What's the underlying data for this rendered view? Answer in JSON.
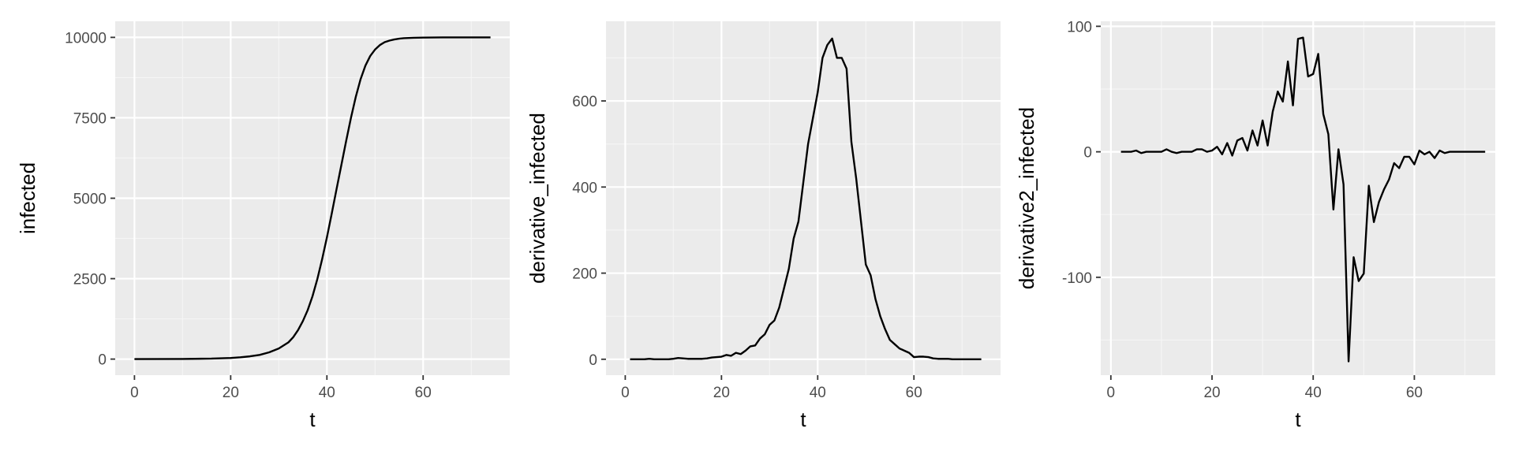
{
  "colors": {
    "panel_background": "#EBEBEB",
    "major_grid": "#FFFFFF",
    "minor_grid": "#F5F5F5",
    "line": "#000000",
    "tick": "#333333",
    "tick_label": "#4D4D4D",
    "axis_title": "#000000"
  },
  "chart_data": [
    {
      "type": "line",
      "xlabel": "t",
      "ylabel": "infected",
      "xlim": [
        -4,
        78
      ],
      "ylim": [
        -500,
        10500
      ],
      "x_ticks": [
        0,
        20,
        40,
        60
      ],
      "x_tick_labels": [
        "0",
        "20",
        "40",
        "60"
      ],
      "y_ticks": [
        0,
        2500,
        5000,
        7500,
        10000
      ],
      "y_tick_labels": [
        "0",
        "2500",
        "5000",
        "7500",
        "10000"
      ],
      "grid": true,
      "legend": "none",
      "series": [
        {
          "x": [
            0,
            10,
            16,
            20,
            22,
            24,
            26,
            28,
            30,
            32,
            33,
            34,
            35,
            36,
            37,
            38,
            39,
            40,
            41,
            42,
            43,
            44,
            45,
            46,
            47,
            48,
            49,
            50,
            51,
            52,
            53,
            54,
            55,
            56,
            58,
            60,
            62,
            64,
            66,
            68,
            70,
            72,
            74
          ],
          "y": [
            0,
            5,
            15,
            35,
            55,
            85,
            130,
            210,
            330,
            520,
            680,
            900,
            1180,
            1520,
            1950,
            2480,
            3100,
            3780,
            4520,
            5280,
            6030,
            6780,
            7500,
            8150,
            8700,
            9120,
            9420,
            9620,
            9760,
            9850,
            9900,
            9935,
            9960,
            9975,
            9988,
            9994,
            9997,
            9999,
            10000,
            10000,
            10000,
            10000,
            10000
          ]
        }
      ]
    },
    {
      "type": "line",
      "xlabel": "t",
      "ylabel": "derivative_infected",
      "xlim": [
        -4,
        78
      ],
      "ylim": [
        -37,
        785
      ],
      "x_ticks": [
        0,
        20,
        40,
        60
      ],
      "x_tick_labels": [
        "0",
        "20",
        "40",
        "60"
      ],
      "y_ticks": [
        0,
        200,
        400,
        600
      ],
      "y_tick_labels": [
        "0",
        "200",
        "400",
        "600"
      ],
      "grid": true,
      "legend": "none",
      "series": [
        {
          "x": [
            1,
            2,
            3,
            4,
            5,
            6,
            7,
            8,
            9,
            10,
            11,
            12,
            13,
            14,
            15,
            16,
            17,
            18,
            19,
            20,
            21,
            22,
            23,
            24,
            25,
            26,
            27,
            28,
            29,
            30,
            31,
            32,
            33,
            34,
            35,
            36,
            37,
            38,
            39,
            40,
            41,
            42,
            43,
            44,
            45,
            46,
            47,
            48,
            49,
            50,
            51,
            52,
            53,
            54,
            55,
            56,
            57,
            58,
            59,
            60,
            61,
            62,
            63,
            64,
            65,
            66,
            67,
            68,
            69,
            70,
            71,
            72,
            73,
            74
          ],
          "y": [
            0,
            0,
            0,
            0,
            1,
            0,
            0,
            0,
            0,
            1,
            3,
            2,
            1,
            1,
            1,
            1,
            2,
            4,
            5,
            6,
            10,
            8,
            15,
            12,
            20,
            30,
            32,
            48,
            58,
            80,
            90,
            120,
            165,
            210,
            280,
            320,
            410,
            500,
            560,
            620,
            700,
            730,
            745,
            700,
            700,
            675,
            505,
            420,
            320,
            220,
            195,
            140,
            100,
            70,
            45,
            35,
            25,
            20,
            15,
            5,
            6,
            6,
            5,
            2,
            1,
            1,
            1,
            0,
            0,
            0,
            0,
            0,
            0,
            0
          ]
        }
      ]
    },
    {
      "type": "line",
      "xlabel": "t",
      "ylabel": "derivative2_infected",
      "xlim": [
        -2,
        76
      ],
      "ylim": [
        -178,
        104
      ],
      "x_ticks": [
        0,
        20,
        40,
        60
      ],
      "x_tick_labels": [
        "0",
        "20",
        "40",
        "60"
      ],
      "y_ticks": [
        -100,
        0,
        100
      ],
      "y_tick_labels": [
        "-100",
        "0",
        "100"
      ],
      "grid": true,
      "legend": "none",
      "series": [
        {
          "x": [
            2,
            3,
            4,
            5,
            6,
            7,
            8,
            9,
            10,
            11,
            12,
            13,
            14,
            15,
            16,
            17,
            18,
            19,
            20,
            21,
            22,
            23,
            24,
            25,
            26,
            27,
            28,
            29,
            30,
            31,
            32,
            33,
            34,
            35,
            36,
            37,
            38,
            39,
            40,
            41,
            42,
            43,
            44,
            45,
            46,
            47,
            48,
            49,
            50,
            51,
            52,
            53,
            54,
            55,
            56,
            57,
            58,
            59,
            60,
            61,
            62,
            63,
            64,
            65,
            66,
            67,
            68,
            69,
            70,
            71,
            72,
            73,
            74
          ],
          "y": [
            0,
            0,
            0,
            1,
            -1,
            0,
            0,
            0,
            0,
            2,
            0,
            -1,
            0,
            0,
            0,
            2,
            2,
            0,
            1,
            4,
            -2,
            7,
            -3,
            9,
            11,
            1,
            17,
            5,
            25,
            5,
            32,
            48,
            40,
            72,
            37,
            90,
            91,
            60,
            62,
            78,
            30,
            14,
            -46,
            2,
            -26,
            -167,
            -84,
            -103,
            -97,
            -27,
            -56,
            -40,
            -30,
            -22,
            -9,
            -13,
            -4,
            -4,
            -10,
            1,
            -2,
            0,
            -5,
            1,
            -1,
            0,
            0,
            0,
            0,
            0,
            0,
            0,
            0
          ]
        }
      ]
    }
  ]
}
